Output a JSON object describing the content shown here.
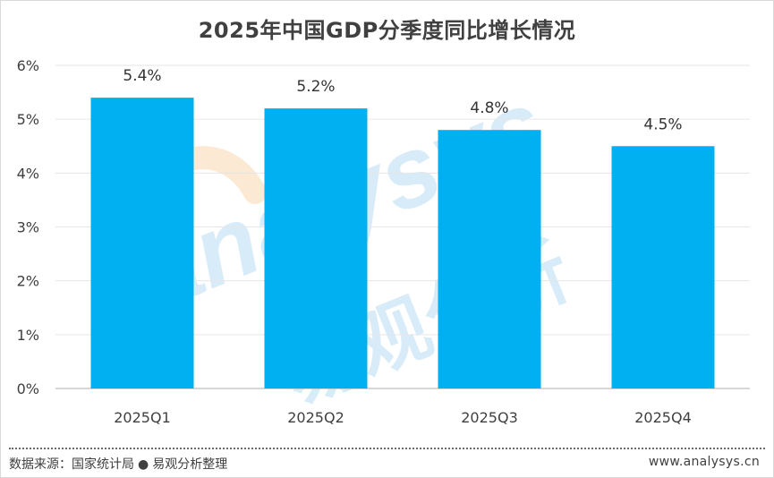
{
  "title": "2025年中国GDP分季度同比增长情况",
  "chart_data": {
    "type": "bar",
    "title": "2025年中国GDP分季度同比增长情况",
    "categories": [
      "2025Q1",
      "2025Q2",
      "2025Q3",
      "2025Q4"
    ],
    "values": [
      5.4,
      5.2,
      4.8,
      4.5
    ],
    "value_labels": [
      "5.4%",
      "5.2%",
      "4.8%",
      "4.5%"
    ],
    "unit": "%",
    "ylim": [
      0,
      6
    ],
    "yticks": [
      "0%",
      "1%",
      "2%",
      "3%",
      "4%",
      "5%",
      "6%"
    ],
    "xlabel": "",
    "ylabel": "",
    "grid": true,
    "bar_color": "#00b0f0"
  },
  "footer": {
    "source_label": "数据来源：国家统计局",
    "source_separator": "●",
    "source_org": "易观分析整理",
    "website": "www.analysys.cn"
  },
  "watermark": {
    "text_latin": "analysys",
    "text_cn": "易观分析"
  },
  "colors": {
    "bar": "#00b0f0",
    "title": "#404040",
    "grid": "#e6e6e6",
    "watermark": "#cfe7f7"
  }
}
